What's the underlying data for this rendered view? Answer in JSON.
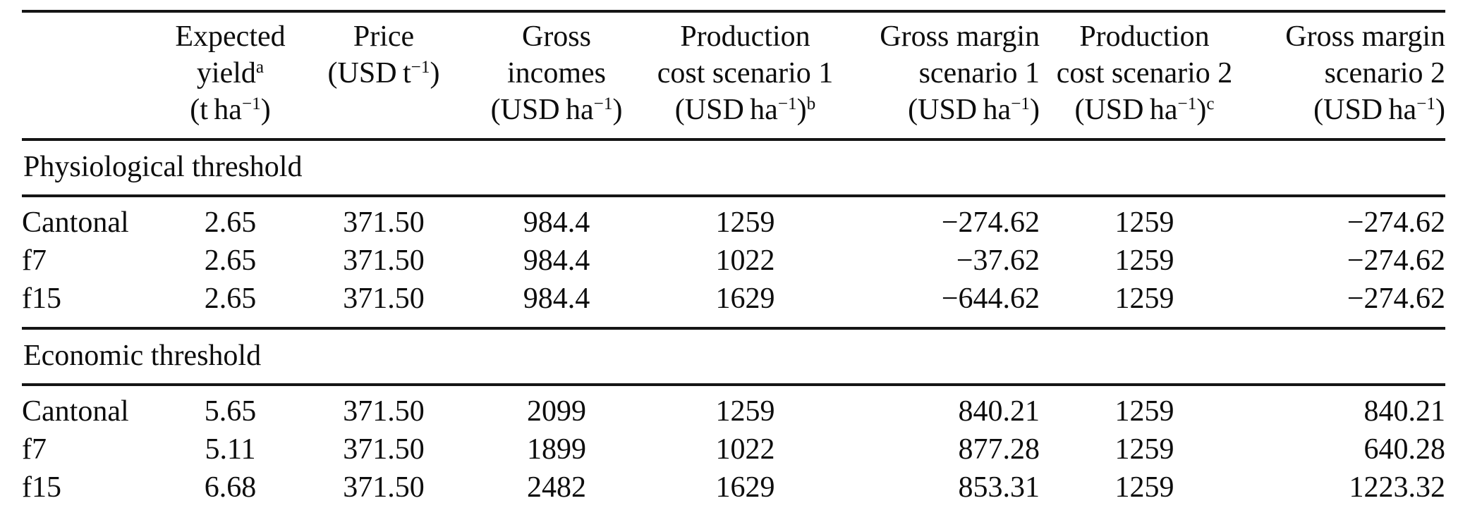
{
  "table": {
    "columns": [
      {
        "label": "",
        "align": "left"
      },
      {
        "label": "Expected\nyield^{a}\n(t ha^{−1})",
        "align": "center"
      },
      {
        "label": "Price\n(USD t^{−1})",
        "align": "center"
      },
      {
        "label": "Gross\nincomes\n(USD ha^{−1})",
        "align": "center"
      },
      {
        "label": "Production\ncost scenario 1\n(USD ha^{−1})^{b}",
        "align": "center"
      },
      {
        "label": "Gross margin\nscenario 1\n(USD ha^{−1})",
        "align": "right"
      },
      {
        "label": "Production\ncost scenario 2\n(USD ha^{−1})^{c}",
        "align": "center"
      },
      {
        "label": "Gross margin\nscenario 2\n(USD ha^{−1})",
        "align": "right"
      }
    ],
    "sections": [
      {
        "title": "Physiological threshold",
        "rows": [
          [
            "Cantonal",
            "2.65",
            "371.50",
            "984.4",
            "1259",
            "−274.62",
            "1259",
            "−274.62"
          ],
          [
            "f7",
            "2.65",
            "371.50",
            "984.4",
            "1022",
            "−37.62",
            "1259",
            "−274.62"
          ],
          [
            "f15",
            "2.65",
            "371.50",
            "984.4",
            "1629",
            "−644.62",
            "1259",
            "−274.62"
          ]
        ]
      },
      {
        "title": "Economic threshold",
        "rows": [
          [
            "Cantonal",
            "5.65",
            "371.50",
            "2099",
            "1259",
            "840.21",
            "1259",
            "840.21"
          ],
          [
            "f7",
            "5.11",
            "371.50",
            "1899",
            "1022",
            "877.28",
            "1259",
            "640.28"
          ],
          [
            "f15",
            "6.68",
            "371.50",
            "2482",
            "1629",
            "853.31",
            "1259",
            "1223.32"
          ]
        ]
      }
    ]
  }
}
